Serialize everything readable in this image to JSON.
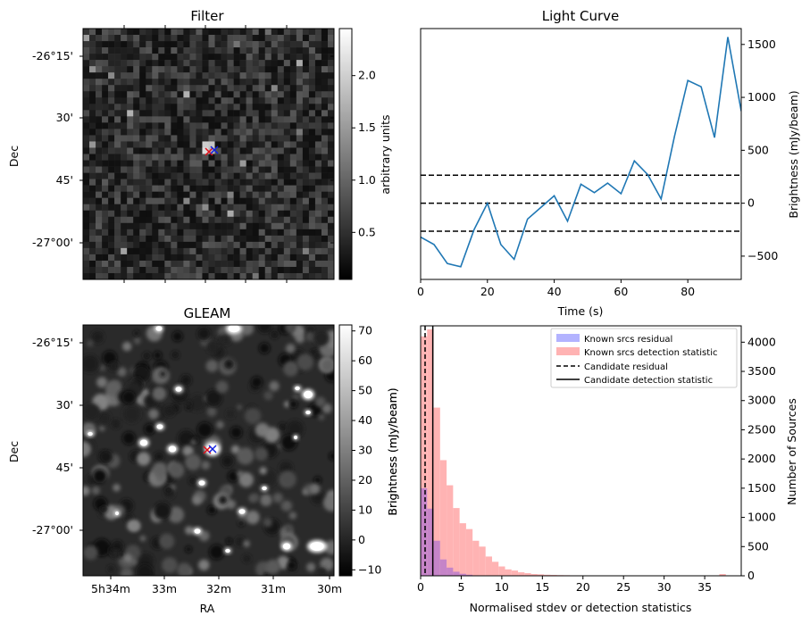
{
  "colors": {
    "line": "#1f77b4",
    "known_residual": "#b3b3ff",
    "known_detection": "#ffb3b3",
    "overlap": "#c584c8",
    "marker_red": "#e0101a",
    "marker_blue": "#1020e0"
  },
  "chart_data": [
    {
      "type": "heatmap",
      "title": "Filter",
      "ylabel": "Dec",
      "ytick_labels": [
        "-26°15'",
        "30'",
        "45'",
        "-27°00'"
      ],
      "colorbar": {
        "label": "arbitrary units",
        "range": [
          0.05,
          2.45
        ],
        "ticks": [
          0.5,
          1.0,
          1.5,
          2.0
        ],
        "tick_labels": [
          "0.5",
          "1.0",
          "1.5",
          "2.0"
        ],
        "colormap": "gray"
      },
      "markers": [
        {
          "symbol": "x",
          "color": "red"
        },
        {
          "symbol": "x",
          "color": "blue"
        }
      ]
    },
    {
      "type": "line",
      "title": "Light Curve",
      "xlabel": "Time (s)",
      "ylabel": "Brightness (mJy/beam)",
      "xlim": [
        0,
        96
      ],
      "ylim": [
        -720,
        1650
      ],
      "xticks": [
        0,
        20,
        40,
        60,
        80
      ],
      "yticks": [
        -500,
        0,
        500,
        1000,
        1500
      ],
      "series": [
        {
          "x": [
            0,
            4,
            8,
            12,
            16,
            20,
            24,
            28,
            32,
            36,
            40,
            44,
            48,
            52,
            56,
            60,
            64,
            68,
            72,
            76,
            80,
            84,
            88,
            92,
            96
          ],
          "values": [
            -320,
            -390,
            -570,
            -600,
            -250,
            0,
            -390,
            -530,
            -150,
            -40,
            70,
            -170,
            180,
            100,
            190,
            90,
            400,
            270,
            40,
            630,
            1160,
            1100,
            620,
            1570,
            870
          ]
        }
      ],
      "hlines": [
        {
          "y": 265,
          "style": "dashed"
        },
        {
          "y": 0,
          "style": "dashed"
        },
        {
          "y": -265,
          "style": "dashed"
        }
      ]
    },
    {
      "type": "heatmap",
      "title": "GLEAM",
      "xlabel": "RA",
      "ylabel": "Dec",
      "xtick_labels": [
        "5h34m",
        "33m",
        "32m",
        "31m",
        "30m"
      ],
      "ytick_labels": [
        "-26°15'",
        "30'",
        "45'",
        "-27°00'"
      ],
      "colorbar": {
        "label": "Brightness (mJy/beam)",
        "range": [
          -12,
          72
        ],
        "ticks": [
          -10,
          0,
          10,
          20,
          30,
          40,
          50,
          60,
          70
        ],
        "tick_labels": [
          "−10",
          "0",
          "10",
          "20",
          "30",
          "40",
          "50",
          "60",
          "70"
        ],
        "colormap": "gray"
      },
      "markers": [
        {
          "symbol": "x",
          "color": "red"
        },
        {
          "symbol": "x",
          "color": "blue"
        }
      ]
    },
    {
      "type": "bar",
      "xlabel": "Normalised stdev or detection statistics",
      "ylabel_left": "Brightness (mJy/beam)",
      "ylabel_right": "Number of Sources",
      "xlim": [
        0,
        39.5
      ],
      "ylim": [
        0,
        4280
      ],
      "xticks": [
        0,
        5,
        10,
        15,
        20,
        25,
        30,
        35
      ],
      "yticks": [
        0,
        500,
        1000,
        1500,
        2000,
        2500,
        3000,
        3500,
        4000
      ],
      "bin_width": 0.8,
      "series": [
        {
          "name": "Known srcs residual",
          "bin_starts": [
            0.0,
            0.8,
            1.6,
            2.4,
            3.2,
            4.0,
            4.8,
            5.6,
            6.4,
            7.2
          ],
          "values": [
            1500,
            1150,
            600,
            280,
            140,
            70,
            35,
            18,
            8,
            4
          ]
        },
        {
          "name": "Known srcs detection statistic",
          "bin_starts": [
            0.0,
            0.8,
            1.6,
            2.4,
            3.2,
            4.0,
            4.8,
            5.6,
            6.4,
            7.2,
            8.0,
            8.8,
            9.6,
            10.4,
            11.2,
            12.0,
            12.8,
            13.6,
            14.4,
            15.2,
            16.0,
            16.8,
            17.6,
            18.4,
            19.2,
            20.0,
            20.8,
            21.6,
            22.4,
            23.2,
            24.0,
            24.8,
            25.6,
            26.4,
            27.2,
            28.0,
            28.8,
            29.6,
            30.4,
            31.2,
            32.0,
            32.8,
            33.6,
            34.4,
            35.2,
            36.0,
            36.8,
            37.6
          ],
          "values": [
            4100,
            4220,
            2880,
            1980,
            1550,
            1160,
            900,
            800,
            600,
            500,
            330,
            240,
            160,
            110,
            90,
            60,
            45,
            30,
            25,
            18,
            15,
            12,
            10,
            8,
            8,
            6,
            5,
            5,
            4,
            4,
            3,
            3,
            3,
            2,
            2,
            2,
            2,
            2,
            2,
            1,
            1,
            1,
            1,
            1,
            1,
            1,
            30,
            1
          ]
        }
      ],
      "vlines": [
        {
          "name": "Candidate residual",
          "x": 0.55,
          "style": "dashed"
        },
        {
          "name": "Candidate detection statistic",
          "x": 1.5,
          "style": "solid"
        }
      ],
      "legend": "top-right"
    }
  ]
}
